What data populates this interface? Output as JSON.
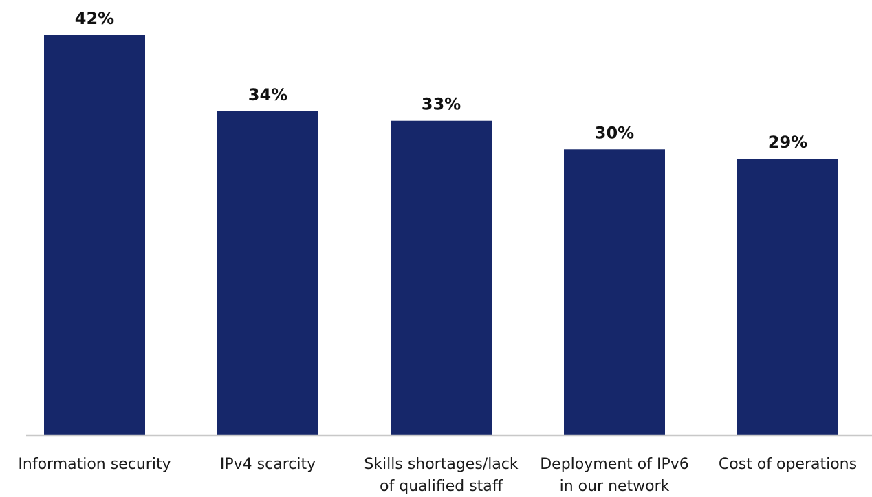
{
  "chart_data": {
    "type": "bar",
    "categories": [
      [
        "Information security"
      ],
      [
        "IPv4 scarcity"
      ],
      [
        "Skills shortages/lack",
        "of qualified staff"
      ],
      [
        "Deployment of IPv6",
        "in our network"
      ],
      [
        "Cost of operations"
      ]
    ],
    "values": [
      42,
      34,
      33,
      30,
      29
    ],
    "value_labels": [
      "42%",
      "34%",
      "33%",
      "30%",
      "29%"
    ],
    "ylim": [
      0,
      42
    ],
    "grid": false,
    "legend": "none",
    "bar_color": "#16276a",
    "axis_color": "#c8c8c8"
  }
}
